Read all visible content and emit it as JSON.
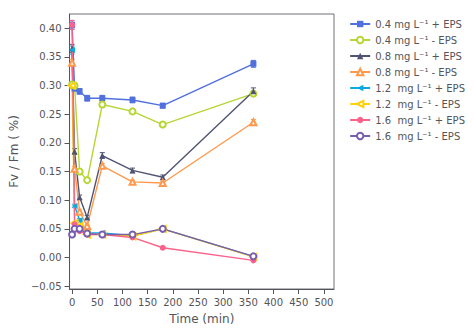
{
  "chart_data": {
    "type": "line",
    "xlabel": "Time (min)",
    "ylabel": "Fv / Fm ( %)",
    "x": [
      0,
      5,
      15,
      30,
      60,
      120,
      180,
      360
    ],
    "xlim": [
      -5,
      520
    ],
    "ylim": [
      -0.055,
      0.425
    ],
    "xticks": [
      0,
      50,
      100,
      150,
      200,
      250,
      300,
      350,
      400,
      450,
      500
    ],
    "yticks": [
      {
        "value": -0.05,
        "label": "−0.05"
      },
      {
        "value": 0.0,
        "label": "0.00"
      },
      {
        "value": 0.05,
        "label": "0.05"
      },
      {
        "value": 0.1,
        "label": "0.10"
      },
      {
        "value": 0.15,
        "label": "0.15"
      },
      {
        "value": 0.2,
        "label": "0.20"
      },
      {
        "value": 0.25,
        "label": "0.25"
      },
      {
        "value": 0.3,
        "label": "0.30"
      },
      {
        "value": 0.35,
        "label": "0.35"
      },
      {
        "value": 0.4,
        "label": "0.40"
      }
    ],
    "grid": false,
    "legend": "upper right",
    "series": [
      {
        "name": "0.4 mg L⁻¹ + EPS",
        "marker": "square",
        "line_style": "solid",
        "values": [
          0.406,
          0.295,
          0.29,
          0.278,
          0.278,
          0.275,
          0.265,
          0.338
        ],
        "yerr": [
          0.007,
          0.005,
          0.005,
          0.005,
          0.005,
          0.005,
          0.004,
          0.006
        ]
      },
      {
        "name": "0.4 mg L⁻¹ - EPS",
        "marker": "open-circle",
        "line_style": "solid",
        "values": [
          0.302,
          0.3,
          0.15,
          0.135,
          0.267,
          0.255,
          0.232,
          0.286
        ],
        "yerr": [
          0.005,
          0.005,
          0.004,
          0.003,
          0.005,
          0.004,
          0.004,
          0.005
        ]
      },
      {
        "name": "0.8 mg L⁻¹ + EPS",
        "marker": "triangle",
        "line_style": "solid",
        "values": [
          0.365,
          0.185,
          0.105,
          0.07,
          0.178,
          0.152,
          0.14,
          0.29
        ],
        "yerr": [
          0.007,
          0.005,
          0.004,
          0.003,
          0.005,
          0.004,
          0.004,
          0.006
        ]
      },
      {
        "name": "0.8 mg L⁻¹ - EPS",
        "marker": "open-triangle",
        "line_style": "solid",
        "values": [
          0.34,
          0.155,
          0.08,
          0.055,
          0.16,
          0.132,
          0.13,
          0.236
        ],
        "yerr": [
          0.006,
          0.004,
          0.003,
          0.002,
          0.004,
          0.003,
          0.003,
          0.005
        ]
      },
      {
        "name": "1.2  mg L⁻¹ + EPS",
        "marker": "left-triangle",
        "line_style": "solid",
        "values": [
          0.362,
          0.09,
          0.065,
          0.043,
          0.043,
          0.038,
          0.05,
          0.002
        ],
        "yerr": [
          0.007,
          0.003,
          0.003,
          0.002,
          0.002,
          0.002,
          0.003,
          0.001
        ]
      },
      {
        "name": "1.2  mg L⁻¹ - EPS",
        "marker": "open-left-triangle",
        "line_style": "solid",
        "values": [
          0.3,
          0.06,
          0.055,
          0.04,
          0.04,
          0.037,
          0.05,
          0.001
        ],
        "yerr": [
          0.005,
          0.003,
          0.002,
          0.002,
          0.002,
          0.002,
          0.003,
          0.001
        ]
      },
      {
        "name": "1.6  mg L⁻¹ + EPS",
        "marker": "circle",
        "line_style": "solid",
        "values": [
          0.406,
          0.058,
          0.046,
          0.04,
          0.04,
          0.035,
          0.017,
          -0.005
        ],
        "yerr": [
          0.008,
          0.003,
          0.002,
          0.002,
          0.002,
          0.002,
          0.002,
          0.001
        ]
      },
      {
        "name": "1.6  mg L⁻¹ - EPS",
        "marker": "open-circle",
        "line_style": "solid",
        "values": [
          0.04,
          0.05,
          0.05,
          0.042,
          0.04,
          0.04,
          0.05,
          0.002
        ],
        "yerr": [
          0.003,
          0.003,
          0.002,
          0.002,
          0.002,
          0.002,
          0.003,
          0.001
        ]
      }
    ]
  }
}
